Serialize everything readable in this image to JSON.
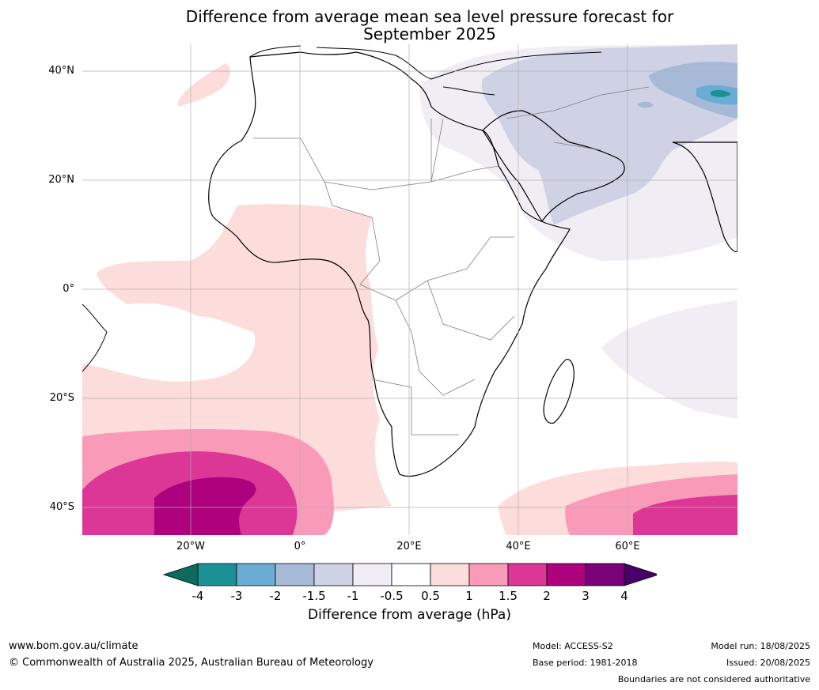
{
  "title": {
    "line1": "Difference from average mean sea level pressure forecast for",
    "line2": "September 2025"
  },
  "axes": {
    "lat_labels": [
      "40°N",
      "20°N",
      "0°",
      "20°S",
      "40°S"
    ],
    "lon_labels": [
      "20°W",
      "0°",
      "20°E",
      "40°E",
      "60°E"
    ]
  },
  "colorbar": {
    "ticks": [
      "-4",
      "-3",
      "-2",
      "-1.5",
      "-1",
      "-0.5",
      "0.5",
      "1",
      "1.5",
      "2",
      "3",
      "4"
    ],
    "colors": [
      "#1b9196",
      "#6aacd3",
      "#a6bad8",
      "#cfd2e5",
      "#f1edf4",
      "#ffffff",
      "#fddcdc",
      "#f99bb8",
      "#dc3696",
      "#ae017e",
      "#7a0177"
    ],
    "under_color": "#0d6b5e",
    "over_color": "#49006a",
    "label": "Difference from average (hPa)"
  },
  "footer": {
    "website": "www.bom.gov.au/climate",
    "copyright": "© Commonwealth of Australia 2025, Australian Bureau of Meteorology",
    "model": "Model: ACCESS-S2",
    "base_period": "Base period: 1981-2018",
    "model_run": "Model run: 18/08/2025",
    "issued": "Issued: 20/08/2025",
    "disclaimer": "Boundaries are not considered authoritative"
  }
}
